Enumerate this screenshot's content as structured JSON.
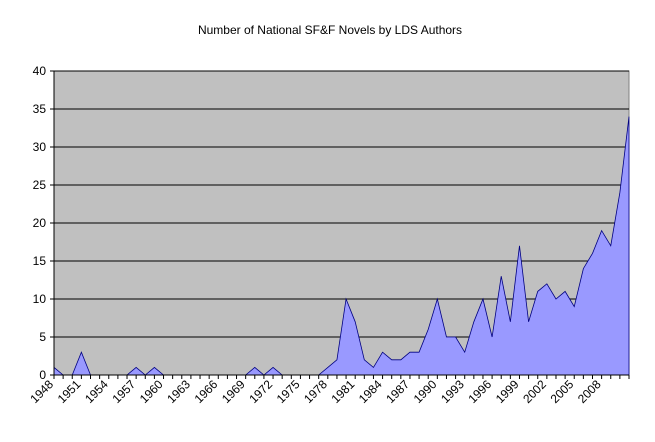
{
  "chart_data": {
    "type": "area",
    "title": "Number of National SF&F Novels by LDS Authors",
    "xlabel": "",
    "ylabel": "",
    "x": [
      1948,
      1949,
      1950,
      1951,
      1952,
      1953,
      1954,
      1955,
      1956,
      1957,
      1958,
      1959,
      1960,
      1961,
      1962,
      1963,
      1964,
      1965,
      1966,
      1967,
      1968,
      1969,
      1970,
      1971,
      1972,
      1973,
      1974,
      1975,
      1976,
      1977,
      1978,
      1979,
      1980,
      1981,
      1982,
      1983,
      1984,
      1985,
      1986,
      1987,
      1988,
      1989,
      1990,
      1991,
      1992,
      1993,
      1994,
      1995,
      1996,
      1997,
      1998,
      1999,
      2000,
      2001,
      2002,
      2003,
      2004,
      2005,
      2006,
      2007,
      2008,
      2009,
      2010,
      2011
    ],
    "values": [
      1,
      0,
      0,
      3,
      0,
      0,
      0,
      0,
      0,
      1,
      0,
      1,
      0,
      0,
      0,
      0,
      0,
      0,
      0,
      0,
      0,
      0,
      1,
      0,
      1,
      0,
      0,
      0,
      0,
      0,
      1,
      2,
      10,
      7,
      2,
      1,
      3,
      2,
      2,
      3,
      3,
      6,
      10,
      5,
      5,
      3,
      7,
      10,
      5,
      13,
      7,
      17,
      7,
      11,
      12,
      10,
      11,
      9,
      14,
      16,
      19,
      17,
      24,
      34
    ],
    "x_tick_labels": [
      "1948",
      "1951",
      "1954",
      "1957",
      "1960",
      "1963",
      "1966",
      "1969",
      "1972",
      "1975",
      "1978",
      "1981",
      "1984",
      "1987",
      "1990",
      "1993",
      "1996",
      "1999",
      "2002",
      "2005",
      "2008"
    ],
    "y_ticks": [
      "0",
      "5",
      "10",
      "15",
      "20",
      "25",
      "30",
      "35",
      "40"
    ],
    "ylim": [
      0,
      40
    ],
    "grid": "horizontal",
    "colors": {
      "plot_bg": "#C0C0C0",
      "fill": "#9999FF",
      "line": "#000080",
      "grid": "#000000"
    }
  }
}
